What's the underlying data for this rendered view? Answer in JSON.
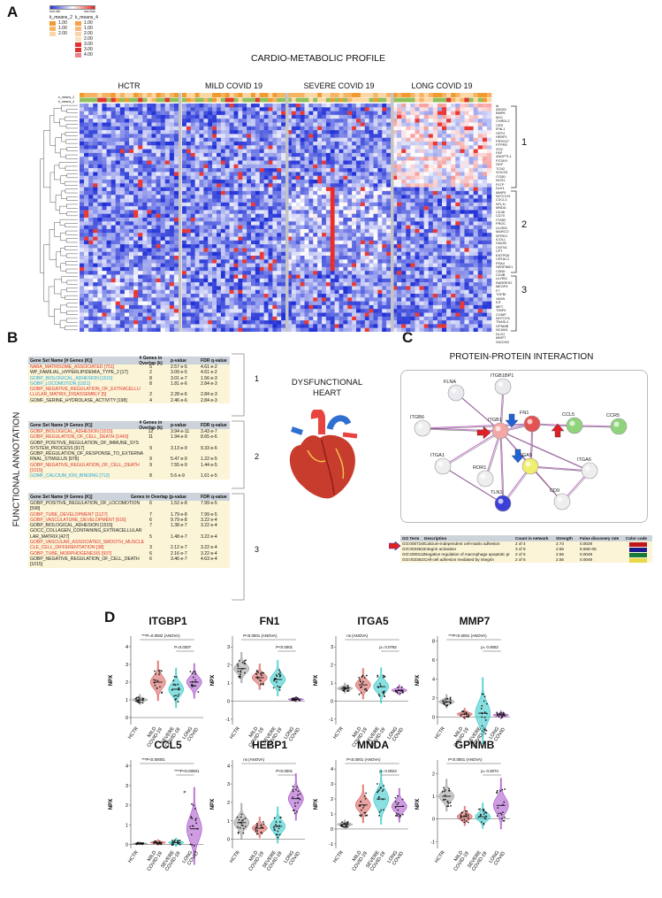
{
  "panels": {
    "a": "A",
    "b": "B",
    "c": "C",
    "d": "D"
  },
  "panelA": {
    "title": "CARDIO-METABOLIC PROFILE",
    "colorbar": {
      "min_label": "row min",
      "max_label": "row max",
      "low_color": "#1f2fd6",
      "mid_color": "#ffffff",
      "high_color": "#e8231f"
    },
    "legend": {
      "col1": {
        "header": "k_means_2",
        "rows": [
          {
            "value": "1.00",
            "color": "#f29a2e"
          },
          {
            "value": "1.00",
            "color": "#f6b362"
          },
          {
            "value": "2.00",
            "color": "#fbd7a6"
          }
        ]
      },
      "col2": {
        "header": "k_means_4",
        "rows": [
          {
            "value": "1.00",
            "color": "#f6a04a"
          },
          {
            "value": "1.00",
            "color": "#f8b878"
          },
          {
            "value": "2.00",
            "color": "#fad3a8"
          },
          {
            "value": "2.00",
            "color": "#fbe0c2"
          },
          {
            "value": "3.00",
            "color": "#e1332d"
          },
          {
            "value": "3.00",
            "color": "#d9342e"
          },
          {
            "value": "4.00",
            "color": "#e8868a"
          }
        ]
      }
    },
    "groups": [
      "HCTR",
      "MILD COVID 19",
      "SEVERE COVID 19",
      "LONG COVID 19"
    ],
    "track_labels": [
      "k_means_2",
      "k_means_4"
    ],
    "id_label": "id",
    "genes": [
      "ADGM",
      "BMP6",
      "MX1",
      "CHRDL2",
      "CRS",
      "IFNL1",
      "OFP4",
      "HEBP1",
      "PRSS27",
      "PTPRS",
      "SOC",
      "FAP",
      "ANGPTL1",
      "PCSK9",
      "GDF",
      "TCN2",
      "SOCS3",
      "ITGB1",
      "NOS1",
      "PLTP",
      "DLK1",
      "MMP9",
      "NOTCH3",
      "CXCL3",
      "NTL1L",
      "MNDA",
      "CD48",
      "CD70",
      "ITGB2",
      "PROC",
      "LILRB1",
      "MARCO",
      "NTRK2",
      "ICOLL",
      "SIAOB",
      "CNTN1",
      "CPT",
      "ENTPD6",
      "CRTAC1",
      "FRA4",
      "SERPINE1",
      "CSNK",
      "CD4B",
      "LILRB1",
      "RARRES2",
      "MEGF9",
      "F7",
      "TGFBI",
      "VASN",
      "KIT",
      "MET",
      "TIMP4",
      "COMP",
      "NOTCH1",
      "TNASL1",
      "GPNMB",
      "NCAM1",
      "DLG1",
      "MMP7",
      "SIGCHD"
    ],
    "clusters": [
      "1",
      "2",
      "3"
    ]
  },
  "panelB": {
    "side_label": "FUNCTIONAL ANNOTATION",
    "heart_label_1": "DYSFUNCTIONAL",
    "heart_label_2": "HEART",
    "brackets": [
      "1",
      "2",
      "3"
    ],
    "tables": [
      {
        "h_name": "Gene Set Name [# Genes (K)]",
        "h_k": "# Genes in Overlap (k)",
        "h_p": "p-value",
        "h_q": "FDR q-value",
        "rows": [
          {
            "name": "NABA_MATRISOME_ASSOCIATED [751]",
            "k": "5",
            "p": "2.57 e-5",
            "q": "4.61 e-2",
            "c": "red"
          },
          {
            "name": "WP_FAMILIAL_HYPERLIPIDEMIA_TYPE_2 [17]",
            "k": "2",
            "p": "3.09 e-5",
            "q": "4.61 e-2",
            "c": "dark"
          },
          {
            "name": "GOBP_BIOLOGICAL_ADHESION [1515]",
            "k": "8",
            "p": "3.01 e-7",
            "q": "1.56 e-3",
            "c": "blue"
          },
          {
            "name": "GOBP_LOCOMOTION [1921]",
            "k": "8",
            "p": "1.81 e-6",
            "q": "2.84 e-3",
            "c": "blue"
          },
          {
            "name": "GOBP_NEGATIVE_REGULATION_OF_EXTRACELLU",
            "k": "",
            "p": "",
            "q": "",
            "c": "red"
          },
          {
            "name": "LLULAR_MATRIX_DISASSEMBLY [5]",
            "k": "2",
            "p": "2.28 e-6",
            "q": "2.84 e-3",
            "c": "red"
          },
          {
            "name": "GOMF_SERINE_HYDROLASE_ACTIVITY [198]",
            "k": "4",
            "p": "2.46 e-6",
            "q": "2.84 e-3",
            "c": "dark"
          }
        ]
      },
      {
        "h_name": "Gene Set Name [# Genes (K)]",
        "h_k": "# Genes in Overlap (k)",
        "h_p": "p-value",
        "h_q": "FDR q-value",
        "rows": [
          {
            "name": "GOBP_BIOLOGICAL_ADHESION [1515]",
            "k": "12",
            "p": "3.94 e-11",
            "q": "3.43 e-7",
            "c": "red"
          },
          {
            "name": "GOBP_REGULATION_OF_CELL_DEATH [1443]",
            "k": "11",
            "p": "1.94 e-9",
            "q": "8.65 e-6",
            "c": "red"
          },
          {
            "name": "GOBP_POSITIVE_REGULATION_OF_IMMUNE_SYS",
            "k": "",
            "p": "",
            "q": "",
            "c": "dark"
          },
          {
            "name": "SYSTEM_PROCESS [917]",
            "k": "9",
            "p": "3.13 e-9",
            "q": "9.33 e-6",
            "c": "dark"
          },
          {
            "name": "GOBP_REGULATION_OF_RESPONSE_TO_EXTERNA",
            "k": "",
            "p": "",
            "q": "",
            "c": "dark"
          },
          {
            "name": "RNAL_STIMULUS [978]",
            "k": "9",
            "p": "5.47 e-9",
            "q": "1.22 e-5",
            "c": "dark"
          },
          {
            "name": "GOBP_NEGATIVE_REGULATION_OF_CELL_DEATH [1015]",
            "k": "9",
            "p": "7.55 e-9",
            "q": "1.44 e-5",
            "c": "red"
          },
          {
            "name": "GOMF_CALCIUM_ION_BINDING [712]",
            "k": "8",
            "p": "5.6 e-9",
            "q": "1.61 e-5",
            "c": "blue"
          }
        ]
      },
      {
        "h_name": "Gene Set Name [# Genes (K)]",
        "h_k": "Genes in Overlap (",
        "h_p": "p-value",
        "h_q": "FDR q-value",
        "rows": [
          {
            "name": "GOBP_POSITIVE_REGULATION_OF_LOCOMOTION [598]",
            "k": "6",
            "p": "1.52 e-8",
            "q": "7.99 e-5",
            "c": "dark"
          },
          {
            "name": "GOBP_TUBE_DEVELOPMENT [1127]",
            "k": "7",
            "p": "1.79 e-8",
            "q": "7.99 e-5",
            "c": "red"
          },
          {
            "name": "GOBP_VASCULATURE_DEVELOPMENT [616]",
            "k": "6",
            "p": "9.79 e-8",
            "q": "3.22 e-4",
            "c": "red"
          },
          {
            "name": "GOBP_BIOLOGICAL_ADHESION [1515]",
            "k": "7",
            "p": "1.38 e-7",
            "q": "3.22 e-4",
            "c": "dark"
          },
          {
            "name": "GOCC_COLLAGEN_CONTAINING_EXTRACELLULAR",
            "k": "",
            "p": "",
            "q": "",
            "c": "dark"
          },
          {
            "name": "LAR_MATRIX [427]",
            "k": "5",
            "p": "1.48 e-7",
            "q": "3.22 e-4",
            "c": "dark"
          },
          {
            "name": "GOBP_VASCULAR_ASSOCIATED_SMOOTH_MUSCLE",
            "k": "",
            "p": "",
            "q": "",
            "c": "red"
          },
          {
            "name": "CLE_CELL_DIFFERENTIATION [38]",
            "k": "3",
            "p": "2.12 e-7",
            "q": "3.22 e-4",
            "c": "red"
          },
          {
            "name": "GOBP_TUBE_MORPHOGENESIS [937]",
            "k": "6",
            "p": "2.16 e-7",
            "q": "3.22 e-4",
            "c": "red"
          },
          {
            "name": "GOBP_NEGATIVE_REGULATION_OF_CELL_DEATH [1015]",
            "k": "6",
            "p": "3.46 e-7",
            "q": "4.63 e-4",
            "c": "dark"
          }
        ]
      }
    ]
  },
  "panelC": {
    "title": "PROTEIN-PROTEIN INTERACTION",
    "nodes": [
      {
        "id": "FLNA",
        "color": "#e9e9ee"
      },
      {
        "id": "ITGB1BP1",
        "color": "#e9e9ee"
      },
      {
        "id": "ITGB6",
        "color": "#eeeeee"
      },
      {
        "id": "ITGB1",
        "color": "#f4a6a6"
      },
      {
        "id": "FN1",
        "color": "#e35353"
      },
      {
        "id": "CCL5",
        "color": "#8fd37a"
      },
      {
        "id": "CCR5",
        "color": "#8fd37a"
      },
      {
        "id": "ITGA1",
        "color": "#eeeeee"
      },
      {
        "id": "ITGA5",
        "color": "#f0ee6c"
      },
      {
        "id": "ITGA6",
        "color": "#eeeeee"
      },
      {
        "id": "ROR1",
        "color": "#eeeeee"
      },
      {
        "id": "TLN1",
        "color": "#3c3fd6"
      },
      {
        "id": "CD9",
        "color": "#eeeeee"
      }
    ],
    "go_header": {
      "term": "GO Term",
      "desc": "Description",
      "count": "Count in network",
      "strength": "Strength",
      "fdr": "False discovery rate",
      "color": "Color code"
    },
    "go_rows": [
      {
        "term": "GO:0007160",
        "desc": "Calcium-independent cell-matrix adhesion",
        "count": "2 of 4",
        "strength": "2.74",
        "fdr": "0.0029",
        "color": "#c0161b"
      },
      {
        "term": "GO:0033622",
        "desc": "Integrin activation",
        "count": "3 of 9",
        "strength": "2.56",
        "fdr": "6.55E-05",
        "color": "#1a1a8c"
      },
      {
        "term": "GO:2000111",
        "desc": "Negative regulation of macrophage apoptotic pr",
        "count": "2 of 6",
        "strength": "2.56",
        "fdr": "0.0049",
        "color": "#157a3a"
      },
      {
        "term": "GO:0033631",
        "desc": "Cell-cell adhesion mediated by integrin",
        "count": "2 of 6",
        "strength": "2.56",
        "fdr": "0.0049",
        "color": "#e8d84a"
      }
    ]
  },
  "panelD": {
    "ylabel": "NPX",
    "groups": [
      "HCTR",
      "MILD COVID-19",
      "SEVERE COVID-19",
      "LONG COVID"
    ],
    "group_colors": [
      "#9a9a9a",
      "#d75a55",
      "#2ac7c9",
      "#a64bc9"
    ],
    "charts": [
      {
        "title": "ITGBP1",
        "yticks": [
          "0",
          "1",
          "2",
          "3",
          "4"
        ],
        "ylim": [
          -0.4,
          4.6
        ],
        "medians": [
          1.0,
          2.0,
          1.6,
          2.0
        ],
        "spreads": [
          0.2,
          0.8,
          0.8,
          0.7
        ],
        "ann1": "***P=0.0002 (ANOVA)",
        "ann2": "P=0.0307"
      },
      {
        "title": "FN1",
        "yticks": [
          "-1",
          "0",
          "1",
          "2",
          "3"
        ],
        "ylim": [
          -1.3,
          3.6
        ],
        "medians": [
          1.8,
          1.3,
          1.2,
          0.1
        ],
        "spreads": [
          0.6,
          0.5,
          0.7,
          0.1
        ],
        "ann1": "P<0.0001 (ANOVA)",
        "ann2": "P<0.0001"
      },
      {
        "title": "ITGA5",
        "yticks": [
          "-1",
          "0",
          "1",
          "2",
          "3"
        ],
        "ylim": [
          -1.3,
          3.6
        ],
        "medians": [
          0.7,
          0.9,
          0.8,
          0.6
        ],
        "spreads": [
          0.2,
          0.6,
          0.7,
          0.2
        ],
        "ann1": "ns (ANOVA)",
        "ann2": "p= 0.0782"
      },
      {
        "title": "MMP7",
        "yticks": [
          "0",
          "2",
          "4",
          "6",
          "8"
        ],
        "ylim": [
          -0.8,
          8.5
        ],
        "medians": [
          1.6,
          0.3,
          0.4,
          0.2
        ],
        "spreads": [
          0.5,
          0.4,
          2.5,
          0.3
        ],
        "ann1": "***P<0.0001 (ANOVA)",
        "ann2": "p= 0.0052"
      },
      {
        "title": "CCL5",
        "yticks": [
          "0",
          "1",
          "2",
          "3",
          "4"
        ],
        "ylim": [
          -0.2,
          4.3
        ],
        "medians": [
          0.05,
          0.1,
          0.1,
          0.8
        ],
        "spreads": [
          0.05,
          0.1,
          0.15,
          1.4
        ],
        "ann1": "***P<0.00001",
        "ann2": "****P<0.00001",
        "ann3": "P"
      },
      {
        "title": "HEBP1",
        "yticks": [
          "0",
          "1",
          "2",
          "3",
          "4"
        ],
        "ylim": [
          -0.5,
          4.3
        ],
        "medians": [
          0.9,
          0.6,
          0.7,
          2.2
        ],
        "spreads": [
          0.7,
          0.4,
          0.7,
          0.9
        ],
        "ann1": "ns (ANOVA)",
        "ann2": "P<0.0001"
      },
      {
        "title": "MNDA",
        "yticks": [
          "-1",
          "0",
          "1",
          "2",
          "3",
          "4"
        ],
        "ylim": [
          -1.3,
          4.6
        ],
        "medians": [
          0.3,
          1.6,
          2.0,
          1.5
        ],
        "spreads": [
          0.2,
          0.9,
          1.3,
          0.8
        ],
        "ann1": "P<0.0001 (ANOVA)",
        "ann2": "p= 0.0024"
      },
      {
        "title": "GPNMB",
        "yticks": [
          "-1",
          "0",
          "1",
          "2"
        ],
        "ylim": [
          -1.3,
          2.6
        ],
        "medians": [
          1.0,
          0.1,
          0.1,
          0.6
        ],
        "spreads": [
          0.5,
          0.3,
          0.4,
          0.8
        ],
        "ann1": "P<0.0001 (ANOVA)",
        "ann2": "p= 0.0074"
      }
    ],
    "xlabels_short": [
      "HCTR",
      "MILD",
      "SEVERE",
      "LONG"
    ],
    "xlabels_sub": [
      "",
      "COVID-19",
      "COVID-19",
      "COVID"
    ]
  }
}
